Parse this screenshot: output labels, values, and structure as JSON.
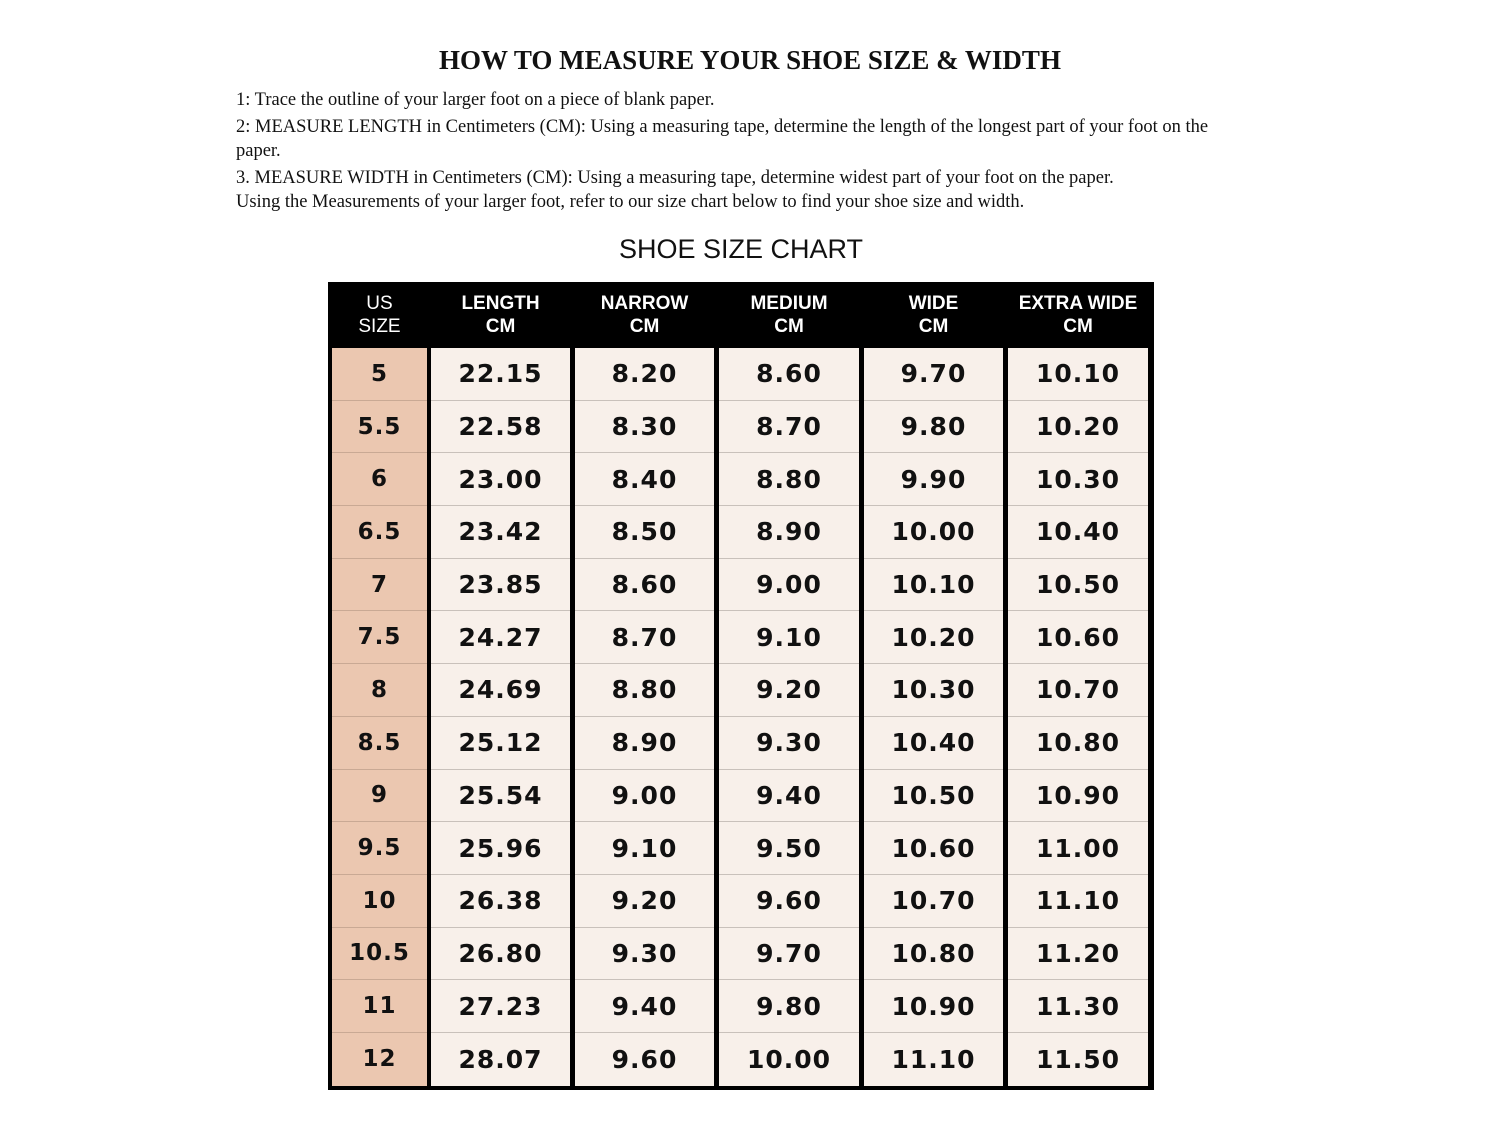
{
  "title": "HOW TO MEASURE YOUR SHOE SIZE & WIDTH",
  "instructions": [
    "1: Trace the outline of your larger foot on a piece of blank paper.",
    "2: MEASURE LENGTH in Centimeters (CM): Using a measuring tape, determine the length of the longest part of your foot on the paper.",
    "3. MEASURE WIDTH in Centimeters (CM): Using a measuring tape, determine widest part of your foot on the paper.",
    "Using the Measurements of your larger foot, refer to our size chart below to find your shoe size and width."
  ],
  "chart_title": "SHOE SIZE CHART",
  "colors": {
    "header_bg": "#000000",
    "size_column": "#ebc7b0",
    "cell_bg": "#f8f0ea"
  },
  "chart_data": {
    "type": "table",
    "columns": [
      {
        "line1": "US",
        "line2": "SIZE"
      },
      {
        "line1": "LENGTH",
        "line2": "CM"
      },
      {
        "line1": "NARROW",
        "line2": "CM"
      },
      {
        "line1": "MEDIUM",
        "line2": "CM"
      },
      {
        "line1": "WIDE",
        "line2": "CM"
      },
      {
        "line1": "EXTRA WIDE",
        "line2": "CM"
      }
    ],
    "rows": [
      [
        "5",
        "22.15",
        "8.20",
        "8.60",
        "9.70",
        "10.10"
      ],
      [
        "5.5",
        "22.58",
        "8.30",
        "8.70",
        "9.80",
        "10.20"
      ],
      [
        "6",
        "23.00",
        "8.40",
        "8.80",
        "9.90",
        "10.30"
      ],
      [
        "6.5",
        "23.42",
        "8.50",
        "8.90",
        "10.00",
        "10.40"
      ],
      [
        "7",
        "23.85",
        "8.60",
        "9.00",
        "10.10",
        "10.50"
      ],
      [
        "7.5",
        "24.27",
        "8.70",
        "9.10",
        "10.20",
        "10.60"
      ],
      [
        "8",
        "24.69",
        "8.80",
        "9.20",
        "10.30",
        "10.70"
      ],
      [
        "8.5",
        "25.12",
        "8.90",
        "9.30",
        "10.40",
        "10.80"
      ],
      [
        "9",
        "25.54",
        "9.00",
        "9.40",
        "10.50",
        "10.90"
      ],
      [
        "9.5",
        "25.96",
        "9.10",
        "9.50",
        "10.60",
        "11.00"
      ],
      [
        "10",
        "26.38",
        "9.20",
        "9.60",
        "10.70",
        "11.10"
      ],
      [
        "10.5",
        "26.80",
        "9.30",
        "9.70",
        "10.80",
        "11.20"
      ],
      [
        "11",
        "27.23",
        "9.40",
        "9.80",
        "10.90",
        "11.30"
      ],
      [
        "12",
        "28.07",
        "9.60",
        "10.00",
        "11.10",
        "11.50"
      ]
    ]
  }
}
